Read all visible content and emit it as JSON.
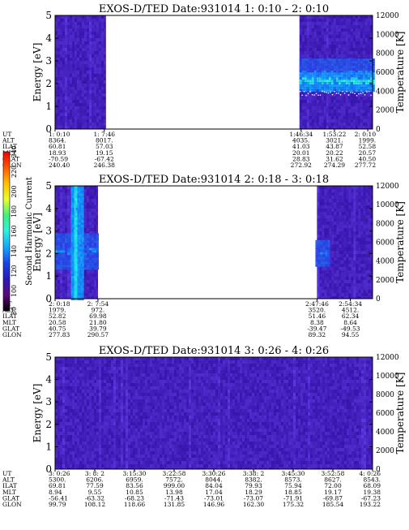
{
  "chart_data": [
    {
      "type": "heatmap",
      "title": "EXOS-D/TED   Date:931014  1: 0:10 - 2: 0:10",
      "ylabel": "Energy [eV]",
      "y2label": "Temperature [K]",
      "ylim": [
        0,
        5
      ],
      "y2lim": [
        0,
        12000
      ],
      "yticks": [
        "0",
        "1",
        "2",
        "3",
        "4",
        "5"
      ],
      "y2ticks": [
        "0",
        "2000",
        "4000",
        "6000",
        "8000",
        "10000",
        "12000"
      ],
      "data_segments": [
        [
          0,
          0.16
        ],
        [
          0.77,
          1.0
        ]
      ],
      "bands": [
        {
          "range": [
            0.77,
            1.0
          ],
          "energy": [
            1.7,
            2.6
          ],
          "intensity": 0.8
        },
        {
          "range": [
            0.77,
            1.0
          ],
          "energy": [
            2.6,
            3.1
          ],
          "intensity": 0.35
        }
      ],
      "temperature_trace": {
        "range": [
          0.77,
          1.0
        ],
        "value": 3800
      },
      "ephemeris": {
        "labels": [
          "UT",
          "ALT",
          "ILAT",
          "MLT",
          "GLAT",
          "GLON"
        ],
        "columns": [
          {
            "pos": 0.0,
            "values": [
              "1: 0:10",
              "8364.",
              "60.81",
              "18.93",
              "-70.59",
              "240.40"
            ]
          },
          {
            "pos": 0.155,
            "values": [
              "1: 7:46",
              "8017.",
              "57.03",
              "19.15",
              "-67.42",
              "246.38"
            ]
          },
          {
            "pos": 0.775,
            "values": [
              "1:46:34",
              "4035.",
              "41.03",
              "20.01",
              "28.83",
              "272.92"
            ]
          },
          {
            "pos": 0.88,
            "values": [
              "1:53:22",
              "3021.",
              "43.87",
              "20.22",
              "31.62",
              "274.29"
            ]
          },
          {
            "pos": 0.985,
            "values": [
              "2: 0:10",
              "1999.",
              "52.58",
              "20.57",
              "40.50",
              "277.72"
            ]
          }
        ]
      }
    },
    {
      "type": "heatmap",
      "title": "EXOS-D/TED   Date:931014  2: 0:18 - 3: 0:18",
      "ylabel": "Energy [eV]",
      "y2label": "Temperature [K]",
      "ylim": [
        0,
        5
      ],
      "y2lim": [
        0,
        12000
      ],
      "yticks": [
        "0",
        "1",
        "2",
        "3",
        "4",
        "5"
      ],
      "y2ticks": [
        "0",
        "2000",
        "4000",
        "6000",
        "8000",
        "10000",
        "12000"
      ],
      "data_segments": [
        [
          0,
          0.135
        ],
        [
          0.825,
          1.0
        ]
      ],
      "bands": [
        {
          "range": [
            0.0,
            0.135
          ],
          "energy": [
            1.3,
            2.9
          ],
          "intensity": 0.45
        },
        {
          "range": [
            0.82,
            0.86
          ],
          "energy": [
            1.5,
            2.6
          ],
          "intensity": 0.45
        }
      ],
      "bright_columns": [
        {
          "range": [
            0.06,
            0.07
          ],
          "intensity": 0.85
        },
        {
          "range": [
            0.05,
            0.09
          ],
          "intensity": 0.5
        }
      ],
      "ephemeris": {
        "labels": [
          "UT",
          "ALT",
          "ILAT",
          "MLT",
          "GLAT",
          "GLON"
        ],
        "columns": [
          {
            "pos": 0.0,
            "values": [
              "2: 0:18",
              "1979.",
              "52.82",
              "20.58",
              "40.75",
              "277.83"
            ]
          },
          {
            "pos": 0.135,
            "values": [
              "2: 7:54",
              "972.",
              "69.98",
              "21.80",
              "39.79",
              "290.57"
            ]
          },
          {
            "pos": 0.825,
            "values": [
              "2:47:46",
              "3520.",
              "51.46",
              "8.38",
              "-39.47",
              "89.32"
            ]
          },
          {
            "pos": 0.93,
            "values": [
              "2:54:34",
              "4512.",
              "62.34",
              "8.64",
              "-49.53",
              "94.55"
            ]
          }
        ]
      }
    },
    {
      "type": "heatmap",
      "title": "EXOS-D/TED   Date:931014  3: 0:26 - 4: 0:26",
      "ylabel": "Energy [eV]",
      "y2label": "Temperature [K]",
      "ylim": [
        0,
        5
      ],
      "y2lim": [
        0,
        12000
      ],
      "yticks": [
        "0",
        "1",
        "2",
        "3",
        "4",
        "5"
      ],
      "y2ticks": [
        "0",
        "2000",
        "4000",
        "6000",
        "8000",
        "10000",
        "12000"
      ],
      "data_segments": [
        [
          0,
          1.0
        ]
      ],
      "bands": [],
      "ephemeris": {
        "labels": [
          "UT",
          "ALT",
          "ILAT",
          "MLT",
          "GLAT",
          "GLON"
        ],
        "columns": [
          {
            "pos": 0.0,
            "values": [
              "3: 0:26",
              "5300.",
              "69.81",
              "8.94",
              "-56.41",
              "99.79"
            ]
          },
          {
            "pos": 0.125,
            "values": [
              "3: 8: 2",
              "6206.",
              "77.59",
              "9.55",
              "-63.32",
              "108.12"
            ]
          },
          {
            "pos": 0.25,
            "values": [
              "3:15:30",
              "6959.",
              "83.56",
              "10.85",
              "-68.23",
              "118.66"
            ]
          },
          {
            "pos": 0.375,
            "values": [
              "3:22:58",
              "7572.",
              "999.00",
              "13.98",
              "-71.43",
              "131.85"
            ]
          },
          {
            "pos": 0.5,
            "values": [
              "3:30:26",
              "8044.",
              "84.04",
              "17.04",
              "-73.01",
              "146.96"
            ]
          },
          {
            "pos": 0.625,
            "values": [
              "3:38: 2",
              "8382.",
              "79.93",
              "18.29",
              "-73.07",
              "162.30"
            ]
          },
          {
            "pos": 0.75,
            "values": [
              "3:45:30",
              "8573.",
              "75.94",
              "18.85",
              "-71.91",
              "175.32"
            ]
          },
          {
            "pos": 0.875,
            "values": [
              "3:52:58",
              "8627.",
              "72.00",
              "19.17",
              "-69.87",
              "185.54"
            ]
          },
          {
            "pos": 1.0,
            "values": [
              "4: 0:26",
              "8543.",
              "68.09",
              "19.38",
              "-67.23",
              "193.22"
            ]
          }
        ]
      }
    }
  ],
  "colorbar": {
    "label": "Second Harmonic Current",
    "ticks": [
      "80",
      "100",
      "120",
      "140",
      "160",
      "180",
      "200",
      "220",
      "240"
    ],
    "colors": [
      "#000000",
      "#5a0a7a",
      "#2a1ab8",
      "#1a44e6",
      "#10a8ff",
      "#30f0e0",
      "#40f080",
      "#e8ff30",
      "#ffc000",
      "#ff5a00",
      "#ee0000"
    ]
  }
}
